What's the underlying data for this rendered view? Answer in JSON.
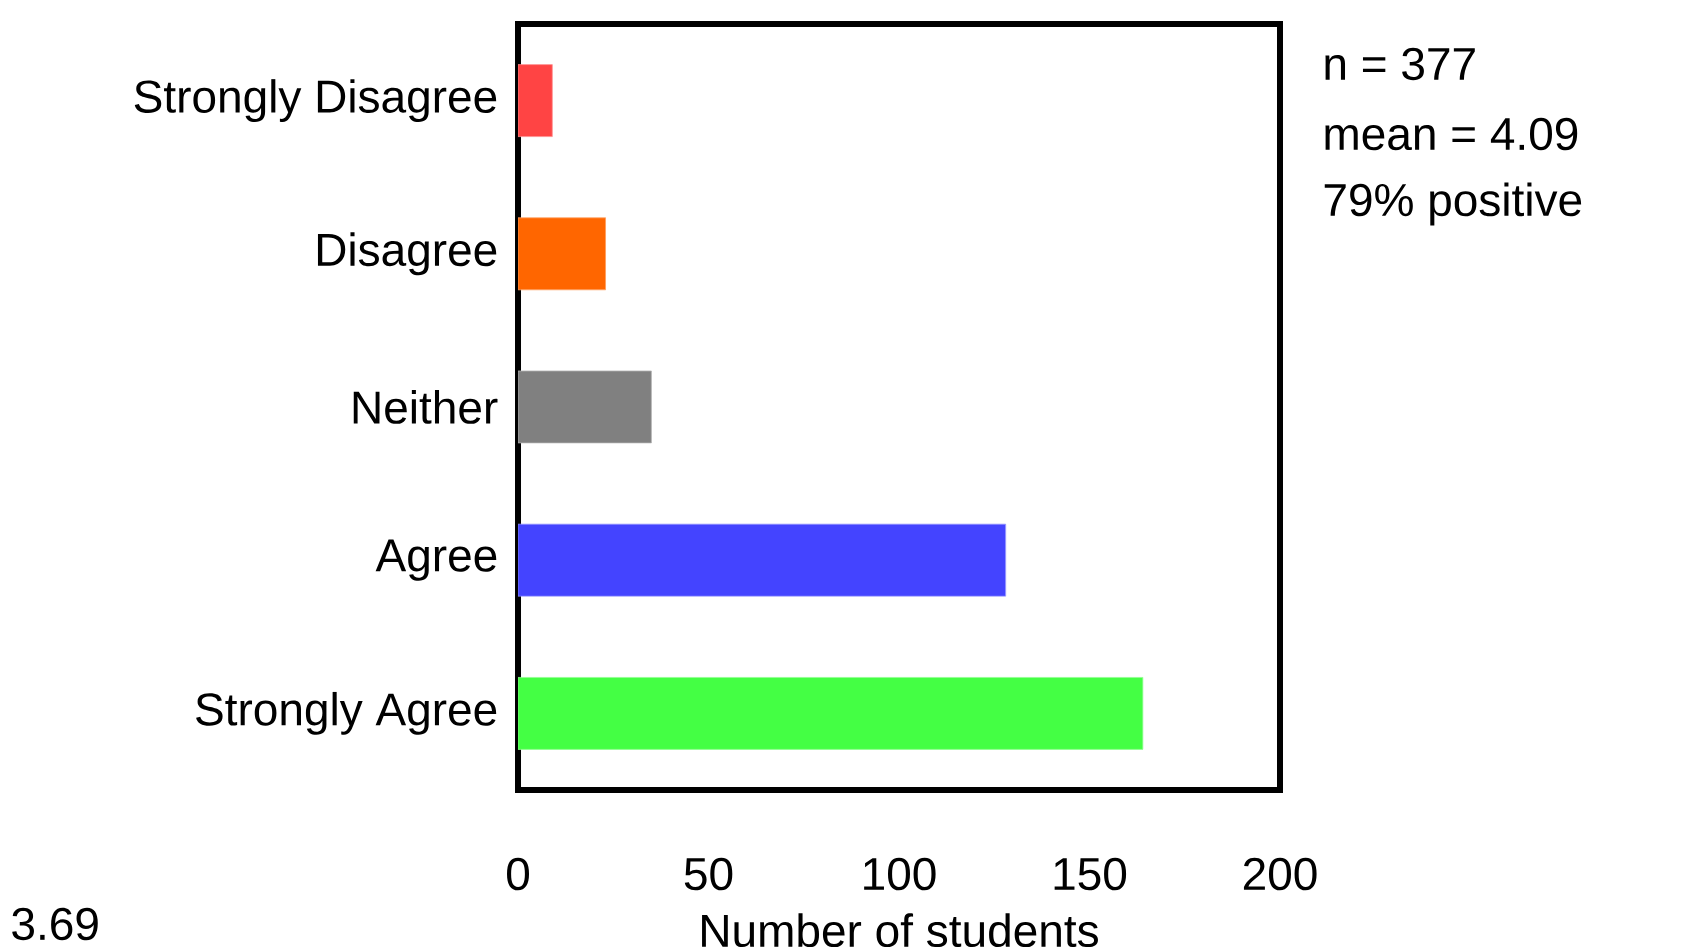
{
  "chart_data": {
    "type": "bar",
    "orientation": "horizontal",
    "xlabel": "Number of students",
    "categories": [
      "Strongly Disagree",
      "Disagree",
      "Neither",
      "Agree",
      "Strongly Agree"
    ],
    "values": [
      9,
      23,
      35,
      128,
      164
    ],
    "colors": [
      "#ff4444",
      "#ff6600",
      "#808080",
      "#4444ff",
      "#44ff44"
    ],
    "xlim": [
      0,
      200
    ],
    "xticks": [
      0,
      50,
      100,
      150,
      200
    ],
    "annotations": [
      "n = 377",
      "mean = 4.09",
      "79% positive",
      "3.69"
    ]
  }
}
